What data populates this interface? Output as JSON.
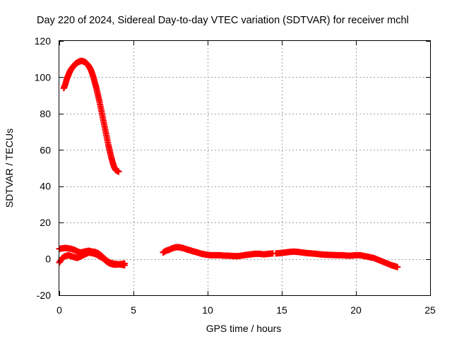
{
  "chart_data": {
    "type": "scatter",
    "title": "Day 220 of 2024, Sidereal Day-to-day VTEC variation (SDTVAR) for receiver mchl",
    "xlabel": "GPS time / hours",
    "ylabel": "SDTVAR / TECUs",
    "xlim": [
      0,
      25
    ],
    "ylim": [
      -20,
      120
    ],
    "xticks": [
      0,
      5,
      10,
      15,
      20,
      25
    ],
    "yticks": [
      -20,
      0,
      20,
      40,
      60,
      80,
      100,
      120
    ],
    "grid": true,
    "marker": "+",
    "series": [
      {
        "name": "high-arc",
        "color": "#ff0000",
        "x": [
          0.3,
          0.4,
          0.5,
          0.6,
          0.7,
          0.8,
          0.9,
          1.0,
          1.1,
          1.2,
          1.3,
          1.4,
          1.5,
          1.6,
          1.7,
          1.8,
          1.9,
          2.0,
          2.1,
          2.2,
          2.3,
          2.4,
          2.5,
          2.6,
          2.7,
          2.8,
          2.9,
          3.0,
          3.1,
          3.2,
          3.3,
          3.4,
          3.5,
          3.6,
          3.7,
          3.8,
          3.9,
          4.0
        ],
        "y": [
          94,
          96,
          99,
          101,
          103,
          104.5,
          105.5,
          106.5,
          107.5,
          108,
          108.5,
          108.8,
          109,
          108.8,
          108.5,
          108,
          107,
          106,
          104.5,
          102.5,
          100,
          97,
          94,
          90.5,
          87,
          83,
          79,
          75,
          71,
          67,
          63,
          59.5,
          56,
          53,
          50.5,
          49,
          48.5,
          48
        ]
      },
      {
        "name": "arc-a",
        "color": "#ff0000",
        "x": [
          0.0,
          0.2,
          0.4,
          0.6,
          0.8,
          1.0,
          1.2,
          1.4,
          1.6,
          1.8,
          2.0,
          2.2,
          2.4,
          2.6,
          2.8,
          3.0,
          3.2,
          3.4,
          3.6,
          3.8,
          4.0,
          4.2,
          4.4
        ],
        "y": [
          5.5,
          5.8,
          6,
          5.8,
          5.5,
          5,
          4.2,
          3.5,
          3.8,
          4.2,
          4.5,
          4,
          3.8,
          3.2,
          2,
          0.5,
          -1,
          -2,
          -2.5,
          -2.8,
          -3,
          -3.2,
          -3.5
        ]
      },
      {
        "name": "arc-b",
        "color": "#ff0000",
        "x": [
          0.0,
          0.2,
          0.4,
          0.6,
          0.8,
          1.0,
          1.2,
          1.4,
          1.6,
          1.8,
          2.0,
          2.2,
          2.4,
          2.6,
          2.8,
          3.0,
          3.2,
          3.4,
          3.6,
          3.8,
          4.0,
          4.2,
          4.4
        ],
        "y": [
          -2,
          0.5,
          1.5,
          2,
          1.5,
          1,
          0.5,
          1.2,
          2,
          2.8,
          3.5,
          3.2,
          2.8,
          2,
          1,
          0,
          -1.5,
          -2.5,
          -3,
          -3.2,
          -3,
          -2.8,
          -2.5
        ]
      },
      {
        "name": "arc-c",
        "color": "#ff0000",
        "x": [
          7.0,
          7.2,
          7.4,
          7.6,
          7.8,
          8.0,
          8.2,
          8.4,
          8.6,
          8.8,
          9.0,
          9.2,
          9.4,
          9.6,
          9.8,
          10.0,
          10.2,
          10.5,
          10.8,
          11.1,
          11.4,
          11.7,
          12.0,
          12.3,
          12.6,
          12.9,
          13.2,
          13.5,
          13.8,
          14.1,
          14.4
        ],
        "y": [
          3.5,
          4.5,
          5,
          5.8,
          6.3,
          6.5,
          6.2,
          5.8,
          5.2,
          4.8,
          4.2,
          3.8,
          3.3,
          2.8,
          2.5,
          2.2,
          2,
          2,
          2,
          1.8,
          1.8,
          1.6,
          1.5,
          1.8,
          2.2,
          2.5,
          2.8,
          2.8,
          2.5,
          2.8,
          3
        ]
      },
      {
        "name": "arc-d",
        "color": "#ff0000",
        "x": [
          14.6,
          14.9,
          15.2,
          15.5,
          15.8,
          16.1,
          16.4,
          16.7,
          17.0,
          17.3,
          17.6,
          17.9,
          18.2,
          18.5,
          18.8,
          19.1,
          19.4,
          19.7,
          20.0,
          20.3,
          20.6,
          20.9,
          21.2,
          21.5,
          21.8,
          22.1,
          22.4,
          22.6,
          22.8
        ],
        "y": [
          3,
          3.2,
          3.5,
          3.8,
          4,
          3.8,
          3.5,
          3.2,
          3,
          2.8,
          2.5,
          2.3,
          2.2,
          2.1,
          2,
          2,
          1.8,
          1.8,
          2,
          2,
          1.5,
          1,
          0.5,
          -0.5,
          -1.5,
          -2.5,
          -3.5,
          -4,
          -4.5
        ]
      }
    ]
  }
}
